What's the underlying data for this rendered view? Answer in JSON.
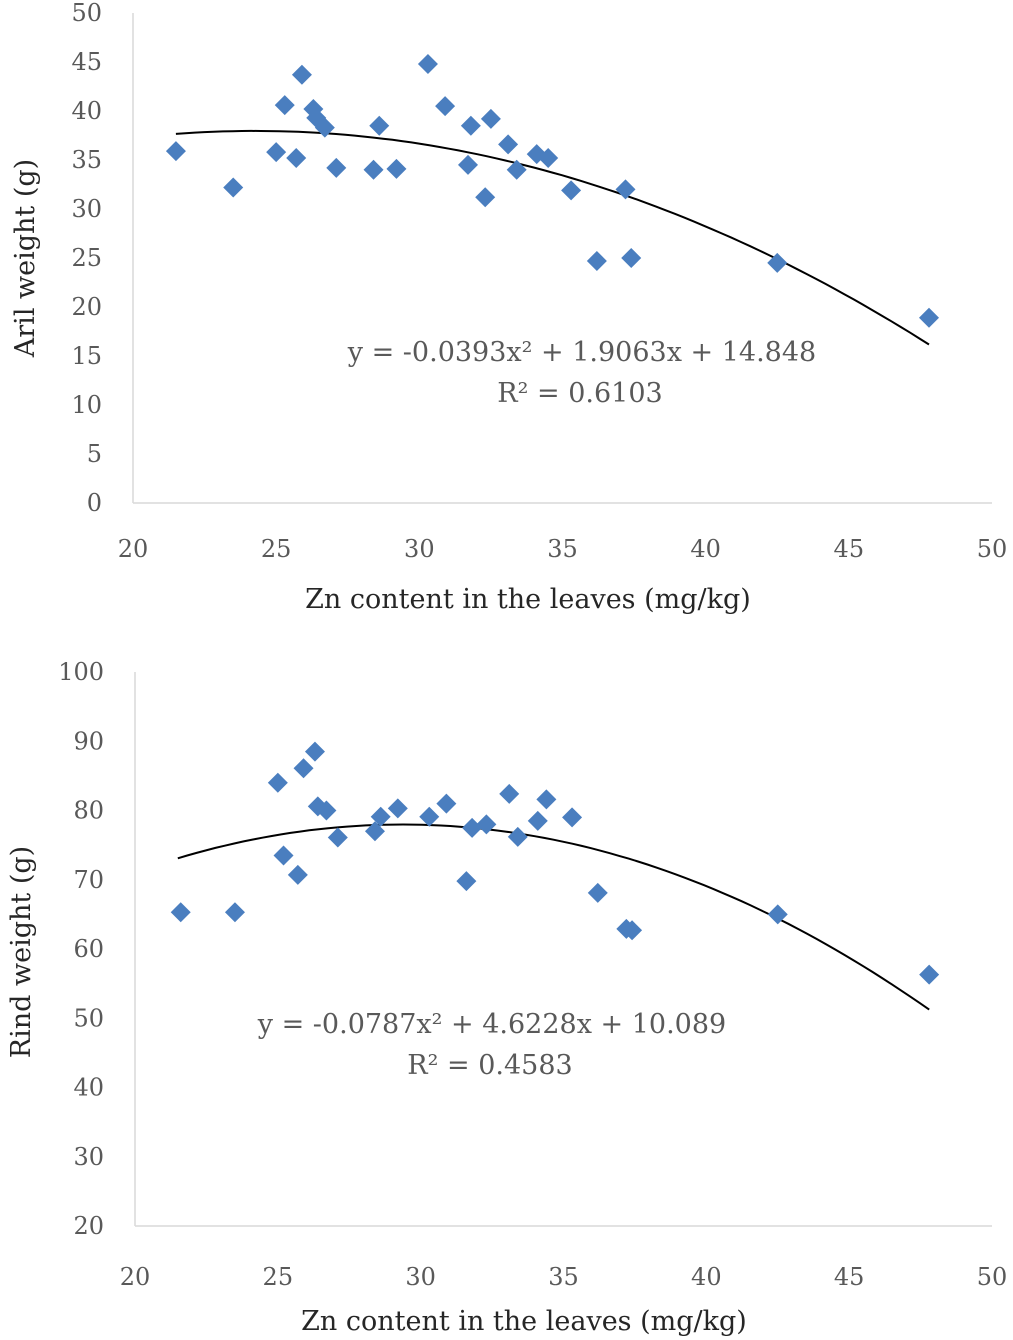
{
  "chart_data": [
    {
      "type": "scatter",
      "xlabel": "Zn content in the leaves (mg/kg)",
      "ylabel": "Aril weight (g)",
      "xlim": [
        20,
        50
      ],
      "ylim": [
        0,
        50
      ],
      "xticks": [
        "20",
        "25",
        "30",
        "35",
        "40",
        "45",
        "50"
      ],
      "yticks": [
        "0",
        "5",
        "10",
        "15",
        "20",
        "25",
        "30",
        "35",
        "40",
        "45",
        "50"
      ],
      "marker_color": "#4a7ebf",
      "series": [
        {
          "name": "Aril weight",
          "x": [
            21.5,
            23.5,
            25.0,
            25.3,
            25.7,
            25.9,
            26.3,
            26.4,
            26.7,
            27.1,
            28.4,
            28.6,
            29.2,
            30.3,
            30.9,
            31.7,
            31.8,
            32.3,
            32.5,
            33.1,
            33.4,
            34.1,
            34.5,
            35.3,
            36.2,
            37.2,
            37.4,
            42.5,
            47.8
          ],
          "y": [
            35.9,
            32.2,
            35.8,
            40.6,
            35.2,
            43.7,
            40.2,
            39.3,
            38.3,
            34.2,
            34.0,
            38.5,
            34.1,
            44.8,
            40.5,
            34.5,
            38.5,
            31.2,
            39.2,
            36.6,
            34.0,
            35.6,
            35.2,
            31.9,
            24.7,
            32.0,
            25.0,
            24.5,
            18.9
          ]
        }
      ],
      "trendline": {
        "a": -0.0393,
        "b": 1.9063,
        "c": 14.848,
        "x_range": [
          21.5,
          47.8
        ]
      },
      "equation": "y = -0.0393x² + 1.9063x + 14.848",
      "r_squared": "R² = 0.6103"
    },
    {
      "type": "scatter",
      "xlabel": "Zn content in the leaves (mg/kg)",
      "ylabel": "Rind weight (g)",
      "xlim": [
        20,
        50
      ],
      "ylim": [
        20,
        100
      ],
      "xticks": [
        "20",
        "25",
        "30",
        "35",
        "40",
        "45",
        "50"
      ],
      "yticks": [
        "20",
        "30",
        "40",
        "50",
        "60",
        "70",
        "80",
        "90",
        "100"
      ],
      "marker_color": "#4a7ebf",
      "series": [
        {
          "name": "Rind weight",
          "x": [
            21.6,
            23.5,
            25.0,
            25.2,
            25.7,
            25.9,
            26.3,
            26.4,
            26.7,
            27.1,
            28.4,
            28.6,
            29.2,
            30.3,
            30.9,
            31.6,
            31.8,
            32.3,
            33.1,
            33.4,
            34.1,
            34.4,
            35.3,
            36.2,
            37.2,
            37.4,
            42.5,
            47.8
          ],
          "y": [
            65.3,
            65.3,
            84.0,
            73.5,
            70.7,
            86.1,
            88.5,
            80.6,
            80.0,
            76.1,
            77.0,
            79.1,
            80.3,
            79.1,
            81.0,
            69.8,
            77.5,
            78.0,
            82.4,
            76.2,
            78.5,
            81.6,
            79.0,
            68.1,
            62.9,
            62.7,
            65.0,
            56.3
          ]
        }
      ],
      "trendline": {
        "a": -0.0787,
        "b": 4.6228,
        "c": 10.089,
        "x_range": [
          21.5,
          47.8
        ]
      },
      "equation": "y = -0.0787x² + 4.6228x + 10.089",
      "r_squared": "R² = 0.4583"
    }
  ]
}
